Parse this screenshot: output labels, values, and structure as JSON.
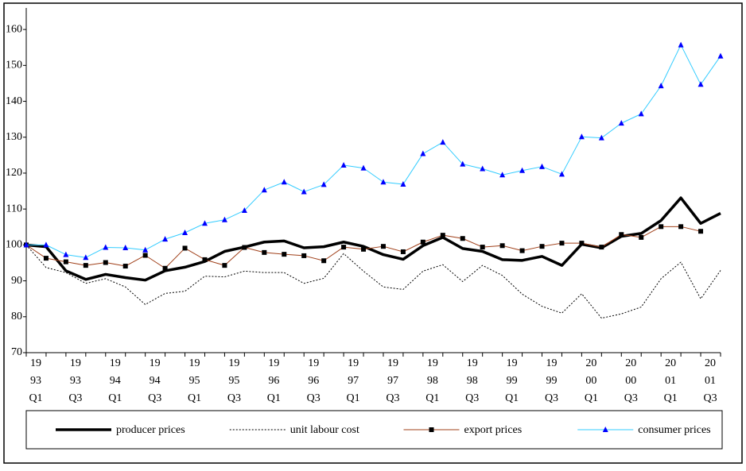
{
  "chart_data": {
    "type": "line",
    "categories": [
      [
        "19",
        "93",
        "Q1"
      ],
      null,
      [
        "19",
        "93",
        "Q3"
      ],
      null,
      [
        "19",
        "94",
        "Q1"
      ],
      null,
      [
        "19",
        "94",
        "Q3"
      ],
      null,
      [
        "19",
        "95",
        "Q1"
      ],
      null,
      [
        "19",
        "95",
        "Q3"
      ],
      null,
      [
        "19",
        "96",
        "Q1"
      ],
      null,
      [
        "19",
        "96",
        "Q3"
      ],
      null,
      [
        "19",
        "97",
        "Q1"
      ],
      null,
      [
        "19",
        "97",
        "Q3"
      ],
      null,
      [
        "19",
        "98",
        "Q1"
      ],
      null,
      [
        "19",
        "98",
        "Q3"
      ],
      null,
      [
        "19",
        "99",
        "Q1"
      ],
      null,
      [
        "19",
        "99",
        "Q3"
      ],
      null,
      [
        "20",
        "00",
        "Q1"
      ],
      null,
      [
        "20",
        "00",
        "Q3"
      ],
      null,
      [
        "20",
        "01",
        "Q1"
      ],
      null,
      [
        "20",
        "01",
        "Q3"
      ],
      null
    ],
    "series": [
      {
        "name": "producer prices",
        "color": "#000000",
        "width": 3.5,
        "values": [
          100,
          99.5,
          92.8,
          90.4,
          91.8,
          90.9,
          90.2,
          92.8,
          93.8,
          95.4,
          98.2,
          99.4,
          100.8,
          101.1,
          99.2,
          99.5,
          100.8,
          99.6,
          97.3,
          96,
          99.8,
          102.1,
          99,
          98.2,
          95.9,
          95.7,
          96.8,
          94.3,
          100.2,
          99.2,
          102.4,
          103.2,
          106.8,
          113.1,
          106,
          108.8
        ]
      },
      {
        "name": "unit labour cost",
        "color": "#000000",
        "width": 1,
        "dash": "2,2",
        "values": [
          100,
          93.7,
          92.3,
          89.3,
          90.6,
          88.3,
          83.4,
          86.5,
          87.1,
          91.3,
          91.1,
          92.7,
          92.3,
          92.3,
          89.3,
          90.7,
          97.6,
          92.7,
          88.3,
          87.6,
          92.7,
          94.5,
          89.8,
          94.3,
          91.5,
          86.3,
          82.9,
          81,
          86.4,
          79.6,
          80.8,
          82.7,
          90.6,
          95.2,
          85,
          92.9
        ]
      },
      {
        "name": "export prices",
        "color": "#a0401a",
        "width": 1,
        "marker": "square",
        "marker_color": "#000000",
        "values": [
          100,
          96.3,
          95.3,
          94.3,
          95.1,
          94.1,
          97.1,
          93.5,
          99.1,
          95.9,
          94.3,
          99.3,
          97.9,
          97.4,
          97,
          95.6,
          99.4,
          98.8,
          99.6,
          98.1,
          100.8,
          102.7,
          101.8,
          99.4,
          99.8,
          98.4,
          99.6,
          100.5,
          100.5,
          99.4,
          102.9,
          102.1,
          105.1,
          105.1,
          103.8,
          null
        ]
      },
      {
        "name": "consumer prices",
        "color": "#33ccff",
        "width": 1,
        "marker": "triangle",
        "marker_color": "#0000ff",
        "values": [
          100,
          100,
          97.3,
          96.5,
          99.3,
          99.2,
          98.6,
          101.6,
          103.4,
          106,
          107,
          109.6,
          115.3,
          117.5,
          114.8,
          116.8,
          122.2,
          121.4,
          117.5,
          116.9,
          125.4,
          128.6,
          122.5,
          121.2,
          119.5,
          120.7,
          121.8,
          119.7,
          130.1,
          129.8,
          133.9,
          136.5,
          144.3,
          155.7,
          144.7,
          152.6
        ]
      }
    ],
    "ylim": [
      70,
      166
    ],
    "yticks": [
      70,
      80,
      90,
      100,
      110,
      120,
      130,
      140,
      150,
      160
    ],
    "grid": false,
    "legend": "bottom"
  }
}
